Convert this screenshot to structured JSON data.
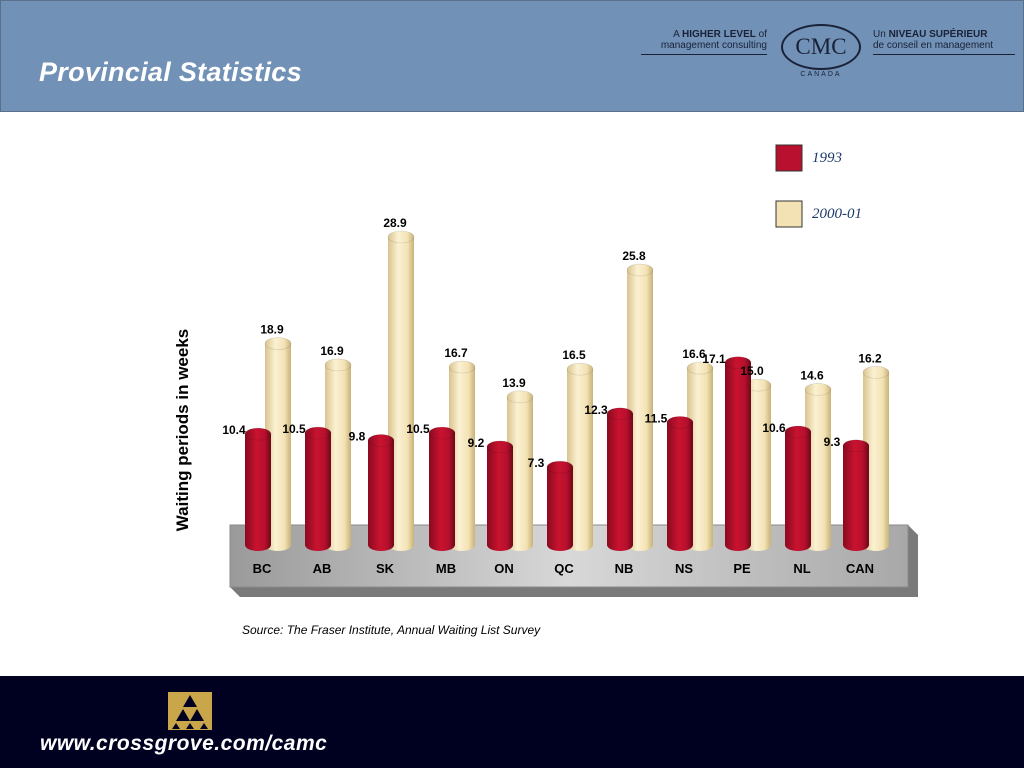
{
  "header": {
    "title": "Provincial Statistics",
    "tagline_en_pre": "A ",
    "tagline_en_bold": "HIGHER LEVEL",
    "tagline_en_post": " of",
    "tagline_en_line2": "management consulting",
    "logo_text": "CMC",
    "logo_sub": "CANADA",
    "tagline_fr_pre": "Un ",
    "tagline_fr_bold": "NIVEAU SUPÉRIEUR",
    "tagline_fr_line2": "de conseil en management"
  },
  "chart_data": {
    "type": "bar",
    "ylabel": "Waiting periods in weeks",
    "categories": [
      "BC",
      "AB",
      "SK",
      "MB",
      "ON",
      "QC",
      "NB",
      "NS",
      "PE",
      "NL",
      "CAN"
    ],
    "series": [
      {
        "name": "1993",
        "values": [
          10.4,
          10.5,
          9.8,
          10.5,
          9.2,
          7.3,
          12.3,
          11.5,
          17.1,
          10.6,
          9.3
        ]
      },
      {
        "name": "2000-01",
        "values": [
          18.9,
          16.9,
          28.9,
          16.7,
          13.9,
          16.5,
          25.8,
          16.6,
          15.0,
          14.6,
          16.2
        ]
      }
    ],
    "legend_position": "top-right",
    "source": "Source: The Fraser Institute, Annual Waiting List Survey",
    "colors": {
      "1993": "#b8102e",
      "2000-01": "#f3e2b4"
    }
  },
  "footer": {
    "url": "www.crossgrove.com/camc",
    "logo_icon": "triangle-pyramid-icon"
  }
}
